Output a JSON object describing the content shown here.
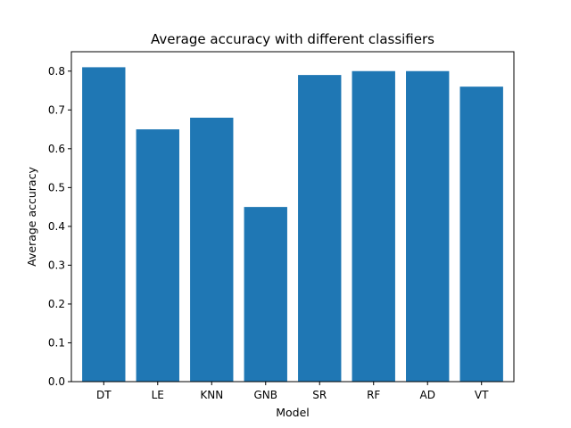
{
  "chart_data": {
    "type": "bar",
    "title": "Average accuracy with different classifiers",
    "xlabel": "Model",
    "ylabel": "Average accuracy",
    "categories": [
      "DT",
      "LE",
      "KNN",
      "GNB",
      "SR",
      "RF",
      "AD",
      "VT"
    ],
    "values": [
      0.81,
      0.65,
      0.68,
      0.45,
      0.79,
      0.8,
      0.8,
      0.76
    ],
    "ylim": [
      0,
      0.85
    ],
    "yticks": [
      "0.0",
      "0.1",
      "0.2",
      "0.3",
      "0.4",
      "0.5",
      "0.6",
      "0.7",
      "0.8"
    ],
    "grid": false,
    "bar_color": "#1f77b4"
  }
}
